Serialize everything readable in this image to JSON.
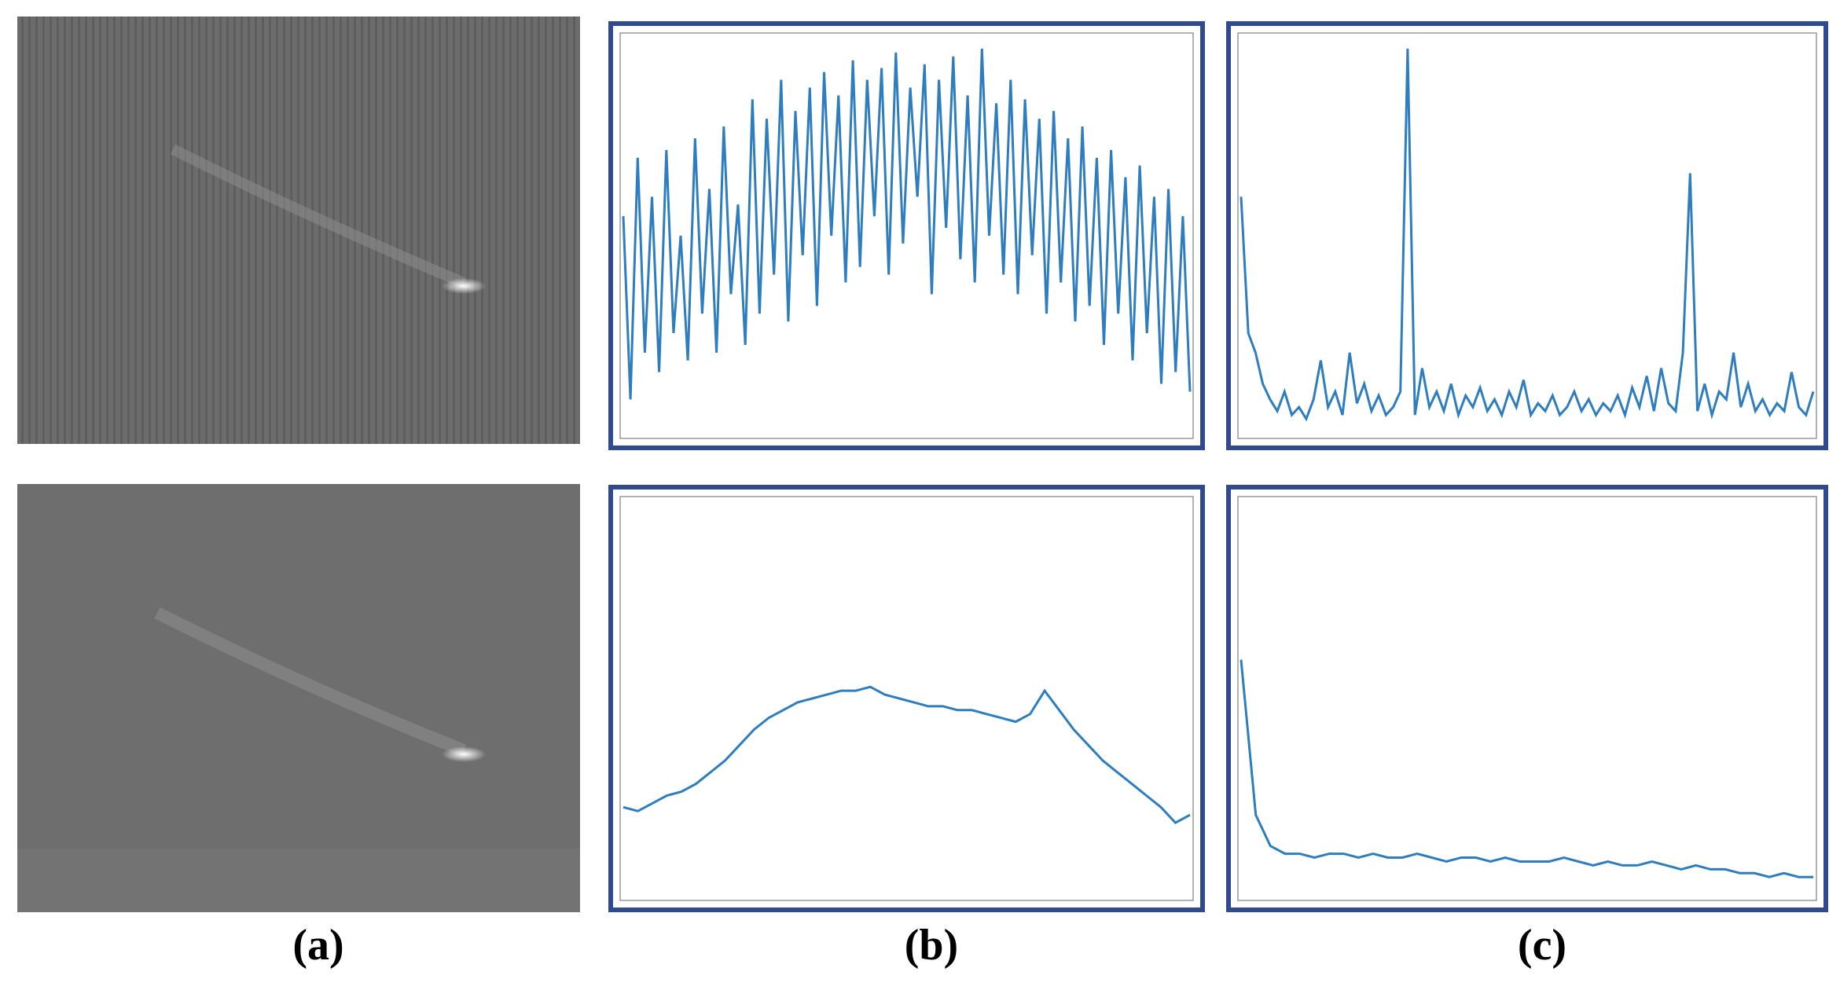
{
  "labels": [
    "(a)",
    "(b)",
    "(c)"
  ],
  "chart_data": [
    {
      "type": "line",
      "color": "#2e7dbf",
      "ylim": [
        0,
        1
      ],
      "values": [
        0.55,
        0.08,
        0.7,
        0.2,
        0.6,
        0.15,
        0.72,
        0.25,
        0.5,
        0.18,
        0.75,
        0.3,
        0.62,
        0.2,
        0.78,
        0.35,
        0.58,
        0.22,
        0.85,
        0.3,
        0.8,
        0.4,
        0.9,
        0.28,
        0.82,
        0.45,
        0.88,
        0.32,
        0.92,
        0.5,
        0.86,
        0.38,
        0.95,
        0.42,
        0.9,
        0.55,
        0.93,
        0.4,
        0.97,
        0.48,
        0.88,
        0.6,
        0.94,
        0.35,
        0.9,
        0.52,
        0.96,
        0.44,
        0.86,
        0.38,
        0.98,
        0.5,
        0.84,
        0.4,
        0.9,
        0.35,
        0.85,
        0.45,
        0.8,
        0.3,
        0.82,
        0.38,
        0.75,
        0.28,
        0.78,
        0.32,
        0.7,
        0.22,
        0.72,
        0.3,
        0.65,
        0.18,
        0.68,
        0.25,
        0.6,
        0.12,
        0.62,
        0.15,
        0.55,
        0.1
      ]
    },
    {
      "type": "line",
      "color": "#2e7dbf",
      "ylim": [
        0,
        1
      ],
      "values": [
        0.6,
        0.25,
        0.2,
        0.12,
        0.08,
        0.05,
        0.1,
        0.04,
        0.06,
        0.03,
        0.08,
        0.18,
        0.06,
        0.1,
        0.04,
        0.2,
        0.07,
        0.12,
        0.05,
        0.09,
        0.04,
        0.06,
        0.1,
        0.98,
        0.04,
        0.16,
        0.06,
        0.1,
        0.05,
        0.12,
        0.04,
        0.09,
        0.06,
        0.11,
        0.05,
        0.08,
        0.04,
        0.1,
        0.06,
        0.13,
        0.04,
        0.07,
        0.05,
        0.09,
        0.04,
        0.06,
        0.1,
        0.05,
        0.08,
        0.04,
        0.07,
        0.05,
        0.09,
        0.04,
        0.11,
        0.06,
        0.14,
        0.05,
        0.16,
        0.07,
        0.05,
        0.2,
        0.66,
        0.05,
        0.12,
        0.04,
        0.1,
        0.08,
        0.2,
        0.06,
        0.12,
        0.05,
        0.08,
        0.04,
        0.07,
        0.05,
        0.15,
        0.06,
        0.04,
        0.1
      ]
    },
    {
      "type": "line",
      "color": "#2e7dbf",
      "ylim": [
        0,
        1
      ],
      "values": [
        0.22,
        0.21,
        0.23,
        0.25,
        0.26,
        0.28,
        0.31,
        0.34,
        0.38,
        0.42,
        0.45,
        0.47,
        0.49,
        0.5,
        0.51,
        0.52,
        0.52,
        0.53,
        0.51,
        0.5,
        0.49,
        0.48,
        0.48,
        0.47,
        0.47,
        0.46,
        0.45,
        0.44,
        0.46,
        0.52,
        0.47,
        0.42,
        0.38,
        0.34,
        0.31,
        0.28,
        0.25,
        0.22,
        0.18,
        0.2
      ]
    },
    {
      "type": "line",
      "color": "#2e7dbf",
      "ylim": [
        0,
        1
      ],
      "values": [
        0.6,
        0.2,
        0.12,
        0.1,
        0.1,
        0.09,
        0.1,
        0.1,
        0.09,
        0.1,
        0.09,
        0.09,
        0.1,
        0.09,
        0.08,
        0.09,
        0.09,
        0.08,
        0.09,
        0.08,
        0.08,
        0.08,
        0.09,
        0.08,
        0.07,
        0.08,
        0.07,
        0.07,
        0.08,
        0.07,
        0.06,
        0.07,
        0.06,
        0.06,
        0.05,
        0.05,
        0.04,
        0.05,
        0.04,
        0.04
      ]
    }
  ]
}
